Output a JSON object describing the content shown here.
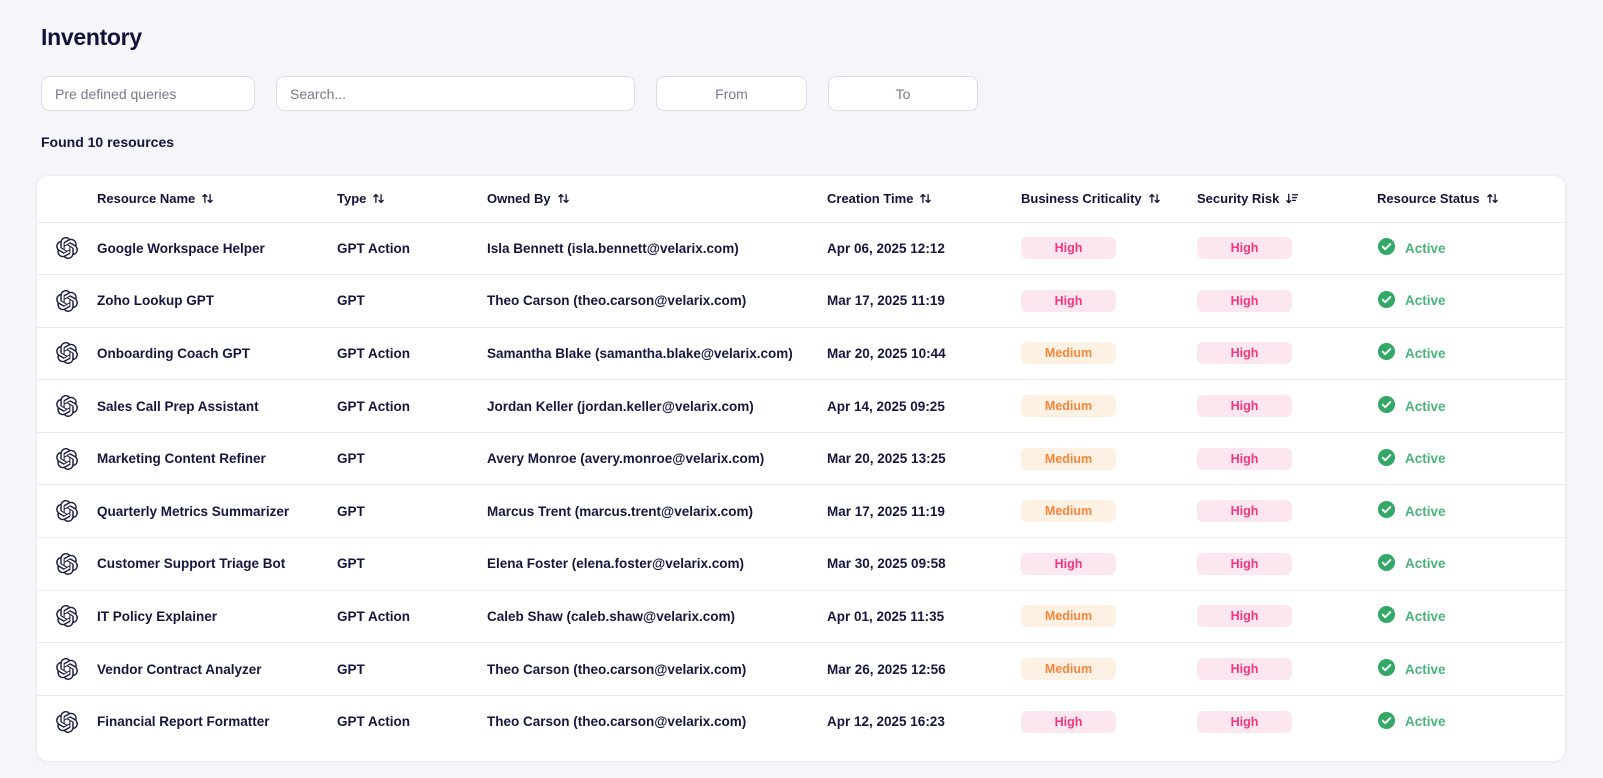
{
  "page": {
    "title": "Inventory",
    "results_summary": "Found 10 resources"
  },
  "filters": {
    "predefined_placeholder": "Pre defined queries",
    "search_placeholder": "Search...",
    "from_placeholder": "From",
    "to_placeholder": "To"
  },
  "table": {
    "columns": [
      {
        "label": "Resource Name",
        "sort_icon": "sort-both-icon"
      },
      {
        "label": "Type",
        "sort_icon": "sort-both-icon"
      },
      {
        "label": "Owned By",
        "sort_icon": "sort-both-icon"
      },
      {
        "label": "Creation Time",
        "sort_icon": "sort-both-icon"
      },
      {
        "label": "Business Criticality",
        "sort_icon": "sort-both-icon"
      },
      {
        "label": "Security Risk",
        "sort_icon": "sort-descending-icon"
      },
      {
        "label": "Resource Status",
        "sort_icon": "sort-both-icon"
      }
    ],
    "rows": [
      {
        "icon": "openai-logo",
        "name": "Google Workspace Helper",
        "type": "GPT Action",
        "owned_by": "Isla Bennett (isla.bennett@velarix.com)",
        "creation_time": "Apr 06, 2025 12:12",
        "business_criticality": "High",
        "security_risk": "High",
        "status": "Active",
        "status_icon": "check-circle"
      },
      {
        "icon": "openai-logo",
        "name": "Zoho Lookup GPT",
        "type": "GPT",
        "owned_by": "Theo Carson (theo.carson@velarix.com)",
        "creation_time": "Mar 17, 2025 11:19",
        "business_criticality": "High",
        "security_risk": "High",
        "status": "Active",
        "status_icon": "check-circle"
      },
      {
        "icon": "openai-logo",
        "name": "Onboarding Coach GPT",
        "type": "GPT Action",
        "owned_by": "Samantha Blake (samantha.blake@velarix.com)",
        "creation_time": "Mar 20, 2025 10:44",
        "business_criticality": "Medium",
        "security_risk": "High",
        "status": "Active",
        "status_icon": "check-circle"
      },
      {
        "icon": "openai-logo",
        "name": "Sales Call Prep Assistant",
        "type": "GPT Action",
        "owned_by": "Jordan Keller (jordan.keller@velarix.com)",
        "creation_time": "Apr 14, 2025 09:25",
        "business_criticality": "Medium",
        "security_risk": "High",
        "status": "Active",
        "status_icon": "check-circle"
      },
      {
        "icon": "openai-logo",
        "name": "Marketing Content Refiner",
        "type": "GPT",
        "owned_by": "Avery Monroe (avery.monroe@velarix.com)",
        "creation_time": "Mar 20, 2025 13:25",
        "business_criticality": "Medium",
        "security_risk": "High",
        "status": "Active",
        "status_icon": "check-circle"
      },
      {
        "icon": "openai-logo",
        "name": "Quarterly Metrics Summarizer",
        "type": "GPT",
        "owned_by": "Marcus Trent (marcus.trent@velarix.com)",
        "creation_time": "Mar 17, 2025 11:19",
        "business_criticality": "Medium",
        "security_risk": "High",
        "status": "Active",
        "status_icon": "check-circle"
      },
      {
        "icon": "openai-logo",
        "name": "Customer Support Triage Bot",
        "type": "GPT",
        "owned_by": "Elena Foster (elena.foster@velarix.com)",
        "creation_time": "Mar 30, 2025 09:58",
        "business_criticality": "High",
        "security_risk": "High",
        "status": "Active",
        "status_icon": "check-circle"
      },
      {
        "icon": "openai-logo",
        "name": "IT Policy Explainer",
        "type": "GPT Action",
        "owned_by": "Caleb Shaw (caleb.shaw@velarix.com)",
        "creation_time": "Apr 01, 2025 11:35",
        "business_criticality": "Medium",
        "security_risk": "High",
        "status": "Active",
        "status_icon": "check-circle"
      },
      {
        "icon": "openai-logo",
        "name": "Vendor Contract Analyzer",
        "type": "GPT",
        "owned_by": "Theo Carson (theo.carson@velarix.com)",
        "creation_time": "Mar 26, 2025 12:56",
        "business_criticality": "Medium",
        "security_risk": "High",
        "status": "Active",
        "status_icon": "check-circle"
      },
      {
        "icon": "openai-logo",
        "name": "Financial Report Formatter",
        "type": "GPT Action",
        "owned_by": "Theo Carson (theo.carson@velarix.com)",
        "creation_time": "Apr 12, 2025 16:23",
        "business_criticality": "High",
        "security_risk": "High",
        "status": "Active",
        "status_icon": "check-circle"
      }
    ]
  },
  "colors": {
    "page_background": "#F6F6FA",
    "text_primary": "#16163E",
    "badge_high_background": "#FCE7F1",
    "badge_high_text": "#F5367C",
    "badge_medium_background": "#FDF1E3",
    "badge_medium_text": "#F5863B",
    "status_active_icon": "#34A867",
    "status_active_text": "#4BB27C"
  }
}
